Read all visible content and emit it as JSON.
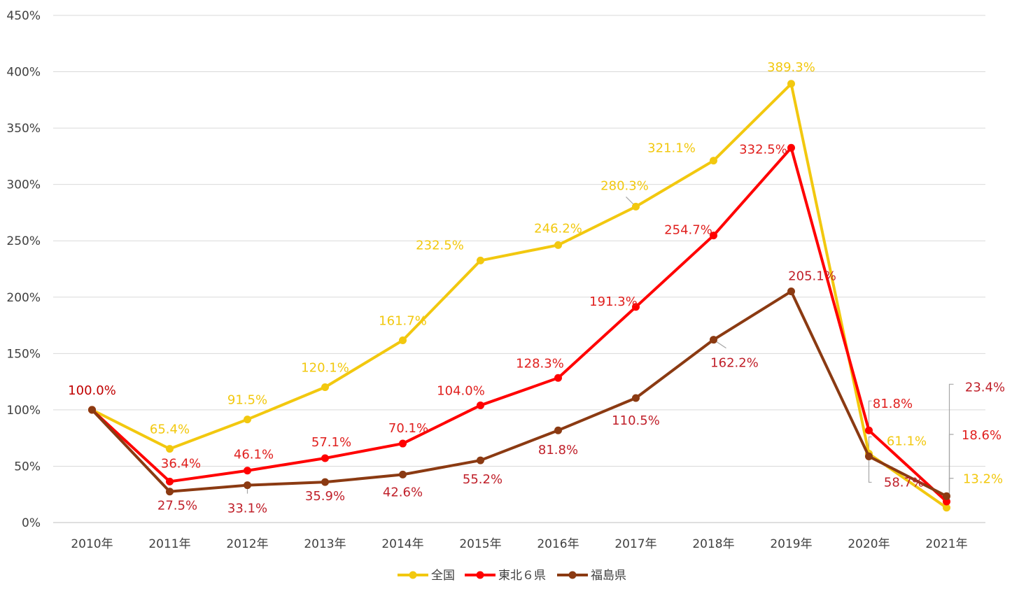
{
  "chart_data": {
    "type": "line",
    "categories": [
      "2010年",
      "2011年",
      "2012年",
      "2013年",
      "2014年",
      "2015年",
      "2016年",
      "2017年",
      "2018年",
      "2019年",
      "2020年",
      "2021年"
    ],
    "y_ticks": [
      "0%",
      "50%",
      "100%",
      "150%",
      "200%",
      "250%",
      "300%",
      "350%",
      "400%",
      "450%"
    ],
    "ylim": [
      0,
      450
    ],
    "grid": true,
    "legend_position": "bottom",
    "series": [
      {
        "name": "全国",
        "color": "#F2C80F",
        "values": [
          100.0,
          65.4,
          91.5,
          120.1,
          161.7,
          232.5,
          246.2,
          280.3,
          321.1,
          389.3,
          61.1,
          13.2
        ],
        "labels": [
          "100.0%",
          "65.4%",
          "91.5%",
          "120.1%",
          "161.7%",
          "232.5%",
          "246.2%",
          "280.3%",
          "321.1%",
          "389.3%",
          "61.1%",
          "13.2%"
        ]
      },
      {
        "name": "東北６県",
        "color": "#FF0000",
        "label_color": "#E0201E",
        "values": [
          100.0,
          36.4,
          46.1,
          57.1,
          70.1,
          104.0,
          128.3,
          191.3,
          254.7,
          332.5,
          81.8,
          18.6
        ],
        "labels": [
          "100.0%",
          "36.4%",
          "46.1%",
          "57.1%",
          "70.1%",
          "104.0%",
          "128.3%",
          "191.3%",
          "254.7%",
          "332.5%",
          "81.8%",
          "18.6%"
        ]
      },
      {
        "name": "福島県",
        "color": "#8B3A12",
        "label_color": "#C0202A",
        "values": [
          100.0,
          27.5,
          33.1,
          35.9,
          42.6,
          55.2,
          81.8,
          110.5,
          162.2,
          205.1,
          58.7,
          23.4
        ],
        "labels": [
          "100.0%",
          "27.5%",
          "33.1%",
          "35.9%",
          "42.6%",
          "55.2%",
          "81.8%",
          "110.5%",
          "162.2%",
          "205.1%",
          "58.7%",
          "23.4%"
        ]
      }
    ]
  }
}
